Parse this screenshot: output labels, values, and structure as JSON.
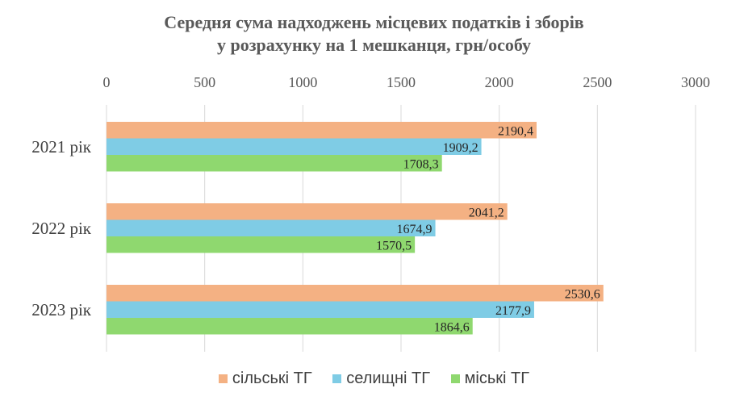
{
  "chart_data": {
    "type": "bar",
    "orientation": "horizontal",
    "title_lines": [
      "Середня сума надходжень місцевих податків і зборів",
      "у розрахунку на 1 мешканця, грн/особу"
    ],
    "categories": [
      "2021 рік",
      "2022 рік",
      "2023 рік"
    ],
    "series": [
      {
        "name": "сільські ТГ",
        "color": "#F4B183",
        "values": [
          2190.4,
          2041.2,
          2530.6
        ],
        "labels": [
          "2190,4",
          "2041,2",
          "2530,6"
        ]
      },
      {
        "name": "селищні ТГ",
        "color": "#7FCCE5",
        "values": [
          1909.2,
          1674.9,
          2177.9
        ],
        "labels": [
          "1909,2",
          "1674,9",
          "2177,9"
        ]
      },
      {
        "name": "міські ТГ",
        "color": "#8FD86F",
        "values": [
          1708.3,
          1570.5,
          1864.6
        ],
        "labels": [
          "1708,3",
          "1570,5",
          "1864,6"
        ]
      }
    ],
    "xlim": [
      0,
      3000
    ],
    "xticks": [
      "0",
      "500",
      "1000",
      "1500",
      "2000",
      "2500",
      "3000"
    ],
    "xaxis_position": "top",
    "grid": true,
    "legend_position": "bottom"
  }
}
